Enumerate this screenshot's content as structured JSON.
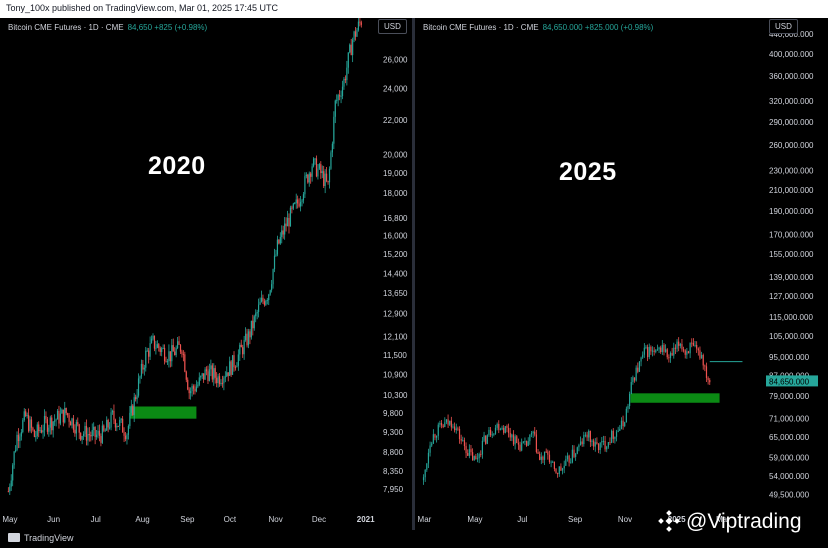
{
  "top_text": "Tony_100x published on TradingView.com, Mar 01, 2025 17:45 UTC",
  "footer_brand": "TradingView",
  "watermark": "@Viptrading",
  "colors": {
    "up": "#26a69a",
    "down": "#ef5350",
    "highlight": "#0b8a14",
    "price_tag": "#26a69a",
    "bg": "#000000",
    "text": "#d1d4dc"
  },
  "panels": [
    {
      "header_symbol": "Bitcoin CME Futures · 1D · CME",
      "header_values": "84,650  +825 (+0.98%)",
      "currency": "USD",
      "big_label": "2020"
    },
    {
      "header_symbol": "Bitcoin CME Futures · 1D · CME",
      "header_values": "84,650.000  +825.000 (+0.98%)",
      "currency": "USD",
      "big_label": "2025"
    }
  ],
  "chart_data": [
    {
      "type": "candlestick",
      "title": "Bitcoin CME Futures · 1D · CME",
      "yscale": "log",
      "ylim": [
        7500,
        29000
      ],
      "y_ticks": [
        {
          "label": "26,000",
          "v": 26000
        },
        {
          "label": "24,000",
          "v": 24000
        },
        {
          "label": "22,000",
          "v": 22000
        },
        {
          "label": "20,000",
          "v": 20000
        },
        {
          "label": "19,000",
          "v": 19000
        },
        {
          "label": "18,000",
          "v": 18000
        },
        {
          "label": "16,800",
          "v": 16800
        },
        {
          "label": "16,000",
          "v": 16000
        },
        {
          "label": "15,200",
          "v": 15200
        },
        {
          "label": "14,400",
          "v": 14400
        },
        {
          "label": "13,650",
          "v": 13650
        },
        {
          "label": "12,900",
          "v": 12900
        },
        {
          "label": "12,100",
          "v": 12100
        },
        {
          "label": "11,500",
          "v": 11500
        },
        {
          "label": "10,900",
          "v": 10900
        },
        {
          "label": "10,300",
          "v": 10300
        },
        {
          "label": "9,800",
          "v": 9800
        },
        {
          "label": "9,300",
          "v": 9300
        },
        {
          "label": "8,800",
          "v": 8800
        },
        {
          "label": "8,350",
          "v": 8350
        },
        {
          "label": "7,950",
          "v": 7950
        }
      ],
      "x_ticks": [
        {
          "label": "May",
          "d": 0
        },
        {
          "label": "Jun",
          "d": 31
        },
        {
          "label": "Jul",
          "d": 61
        },
        {
          "label": "Aug",
          "d": 92
        },
        {
          "label": "Sep",
          "d": 123
        },
        {
          "label": "Oct",
          "d": 153
        },
        {
          "label": "Nov",
          "d": 184
        },
        {
          "label": "Dec",
          "d": 214
        },
        {
          "label": "2021",
          "d": 245,
          "bold": true
        }
      ],
      "x_range_days": [
        -3,
        250
      ],
      "price_path": [
        [
          0,
          7900
        ],
        [
          6,
          9200
        ],
        [
          12,
          9700
        ],
        [
          18,
          9200
        ],
        [
          25,
          9500
        ],
        [
          31,
          9600
        ],
        [
          40,
          9800
        ],
        [
          50,
          9300
        ],
        [
          60,
          9200
        ],
        [
          66,
          9250
        ],
        [
          72,
          9700
        ],
        [
          82,
          9300
        ],
        [
          88,
          10300
        ],
        [
          95,
          11500
        ],
        [
          100,
          11900
        ],
        [
          108,
          11600
        ],
        [
          112,
          11500
        ],
        [
          120,
          11800
        ],
        [
          125,
          10400
        ],
        [
          131,
          10600
        ],
        [
          137,
          11000
        ],
        [
          145,
          10800
        ],
        [
          153,
          11100
        ],
        [
          158,
          11400
        ],
        [
          166,
          12100
        ],
        [
          174,
          13200
        ],
        [
          180,
          13700
        ],
        [
          186,
          15500
        ],
        [
          192,
          16500
        ],
        [
          200,
          17500
        ],
        [
          210,
          19500
        ],
        [
          216,
          19000
        ],
        [
          221,
          18300
        ],
        [
          226,
          23000
        ],
        [
          232,
          24500
        ],
        [
          238,
          27500
        ],
        [
          244,
          29000
        ]
      ],
      "highlight_zone": {
        "d_start": 84,
        "d_end": 130,
        "low": 9650,
        "high": 9980
      }
    },
    {
      "type": "candlestick",
      "title": "Bitcoin CME Futures · 1D · CME",
      "yscale": "log",
      "ylim": [
        46000,
        470000
      ],
      "y_ticks": [
        {
          "label": "440,000.000",
          "v": 440000
        },
        {
          "label": "400,000.000",
          "v": 400000
        },
        {
          "label": "360,000.000",
          "v": 360000
        },
        {
          "label": "320,000.000",
          "v": 320000
        },
        {
          "label": "290,000.000",
          "v": 290000
        },
        {
          "label": "260,000.000",
          "v": 260000
        },
        {
          "label": "230,000.000",
          "v": 230000
        },
        {
          "label": "210,000.000",
          "v": 210000
        },
        {
          "label": "190,000.000",
          "v": 190000
        },
        {
          "label": "170,000.000",
          "v": 170000
        },
        {
          "label": "155,000.000",
          "v": 155000
        },
        {
          "label": "139,000.000",
          "v": 139000
        },
        {
          "label": "127,000.000",
          "v": 127000
        },
        {
          "label": "115,000.000",
          "v": 115000
        },
        {
          "label": "105,000.000",
          "v": 105000
        },
        {
          "label": "95,000.000",
          "v": 95000
        },
        {
          "label": "87,000.000",
          "v": 87000
        },
        {
          "label": "79,000.000",
          "v": 79000
        },
        {
          "label": "71,000.000",
          "v": 71000
        },
        {
          "label": "65,000.000",
          "v": 65000
        },
        {
          "label": "59,000.000",
          "v": 59000
        },
        {
          "label": "54,000.000",
          "v": 54000
        },
        {
          "label": "49,500.000",
          "v": 49500
        }
      ],
      "price_tag": {
        "label": "84,650.000",
        "v": 84650
      },
      "x_ticks": [
        {
          "label": "Mar",
          "d": 0
        },
        {
          "label": "May",
          "d": 61
        },
        {
          "label": "Jul",
          "d": 122
        },
        {
          "label": "Sep",
          "d": 184
        },
        {
          "label": "Nov",
          "d": 245
        },
        {
          "label": "2025",
          "d": 306,
          "bold": true
        },
        {
          "label": "Mar",
          "d": 365
        }
      ],
      "x_range_days": [
        -8,
        420
      ],
      "price_path": [
        [
          0,
          53000
        ],
        [
          8,
          64000
        ],
        [
          16,
          67000
        ],
        [
          26,
          69000
        ],
        [
          36,
          70000
        ],
        [
          46,
          64000
        ],
        [
          56,
          60000
        ],
        [
          64,
          58000
        ],
        [
          72,
          63000
        ],
        [
          82,
          67000
        ],
        [
          92,
          69000
        ],
        [
          104,
          67000
        ],
        [
          114,
          63000
        ],
        [
          124,
          62000
        ],
        [
          134,
          66000
        ],
        [
          142,
          58000
        ],
        [
          152,
          60000
        ],
        [
          160,
          55000
        ],
        [
          170,
          56000
        ],
        [
          180,
          59000
        ],
        [
          190,
          62000
        ],
        [
          200,
          66000
        ],
        [
          210,
          62000
        ],
        [
          222,
          63000
        ],
        [
          232,
          66000
        ],
        [
          244,
          69000
        ],
        [
          250,
          76000
        ],
        [
          256,
          86000
        ],
        [
          262,
          90000
        ],
        [
          270,
          97000
        ],
        [
          276,
          98000
        ],
        [
          284,
          96000
        ],
        [
          292,
          100000
        ],
        [
          300,
          94000
        ],
        [
          306,
          97000
        ],
        [
          314,
          102000
        ],
        [
          320,
          97000
        ],
        [
          326,
          100000
        ],
        [
          334,
          97000
        ],
        [
          340,
          96000
        ],
        [
          346,
          88000
        ],
        [
          350,
          84650
        ]
      ],
      "highlight_zone": {
        "d_start": 253,
        "d_end": 362,
        "low": 76500,
        "high": 80000
      },
      "hline": {
        "v": 93000,
        "d_start": 350,
        "d_end": 390
      }
    }
  ]
}
